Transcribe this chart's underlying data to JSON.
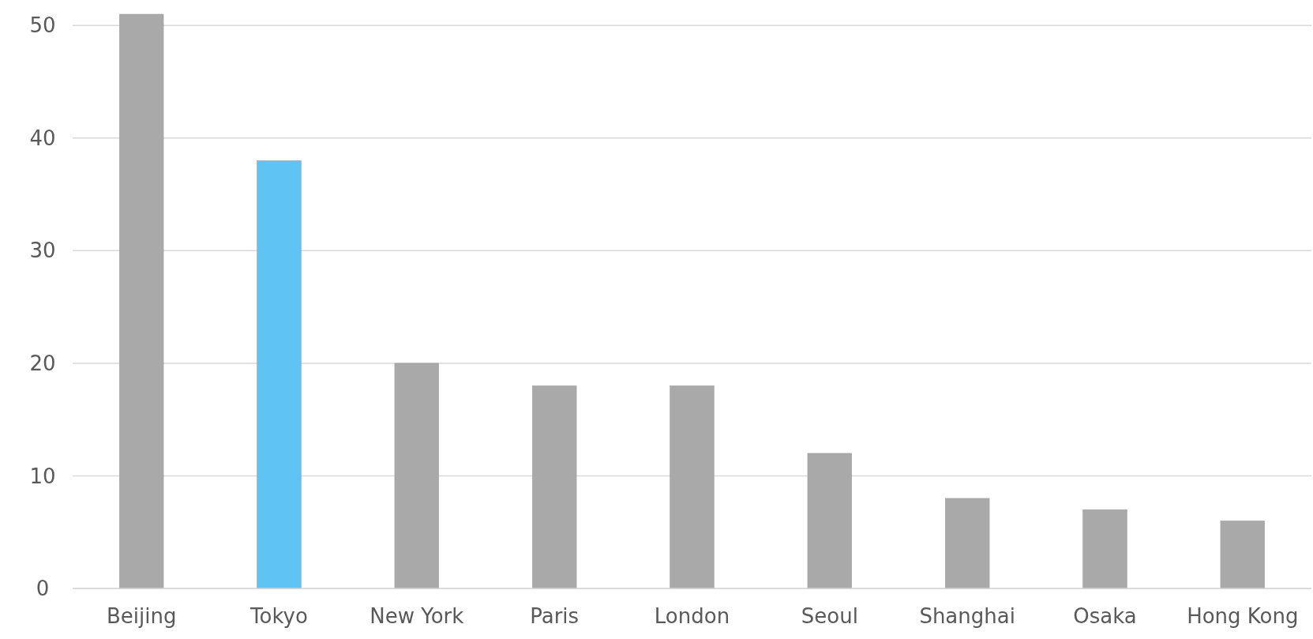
{
  "chart_data": {
    "type": "bar",
    "categories": [
      "Beijing",
      "Tokyo",
      "New York",
      "Paris",
      "London",
      "Seoul",
      "Shanghai",
      "Osaka",
      "Hong Kong"
    ],
    "values": [
      51,
      38,
      20,
      18,
      18,
      12,
      8,
      7,
      6
    ],
    "colors": [
      "#a9a9a9",
      "#5fc3f3",
      "#a9a9a9",
      "#a9a9a9",
      "#a9a9a9",
      "#a9a9a9",
      "#a9a9a9",
      "#a9a9a9",
      "#a9a9a9"
    ],
    "ylim": [
      0,
      51
    ],
    "yticks": [
      0,
      10,
      20,
      30,
      40,
      50
    ],
    "grid": "y"
  }
}
